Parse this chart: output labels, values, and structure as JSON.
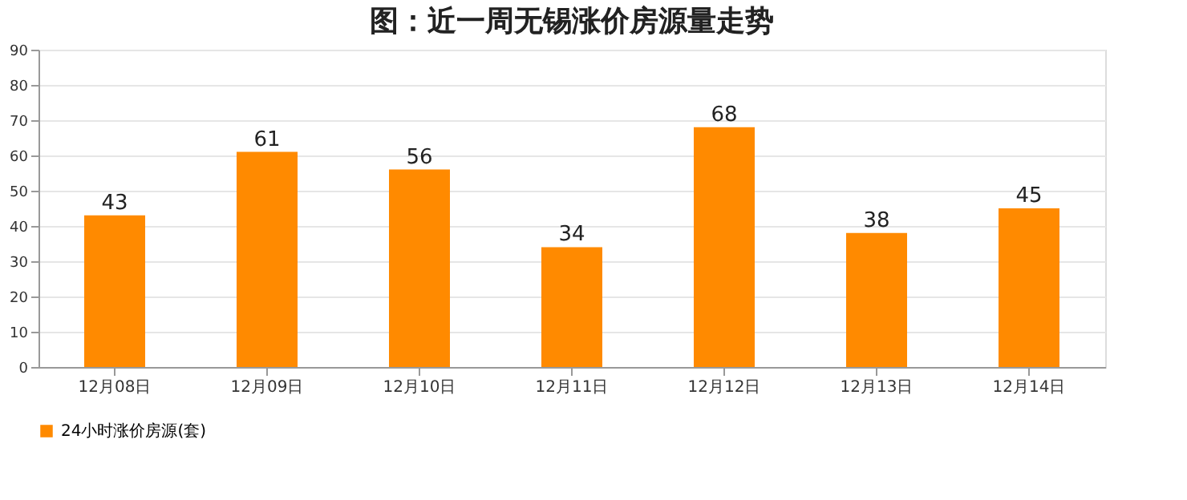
{
  "chart_data": {
    "type": "bar",
    "title": "图：近一周无锡涨价房源量走势",
    "categories": [
      "12月08日",
      "12月09日",
      "12月10日",
      "12月11日",
      "12月12日",
      "12月13日",
      "12月14日"
    ],
    "series": [
      {
        "name": "24小时涨价房源(套)",
        "color": "#ff8a00",
        "values": [
          43,
          61,
          56,
          34,
          68,
          38,
          45
        ]
      }
    ],
    "ylim": [
      0,
      90
    ],
    "yticks": [
      0,
      10,
      20,
      30,
      40,
      50,
      60,
      70,
      80,
      90
    ],
    "grid": "y",
    "legend": "bottom",
    "data_labels": true
  }
}
